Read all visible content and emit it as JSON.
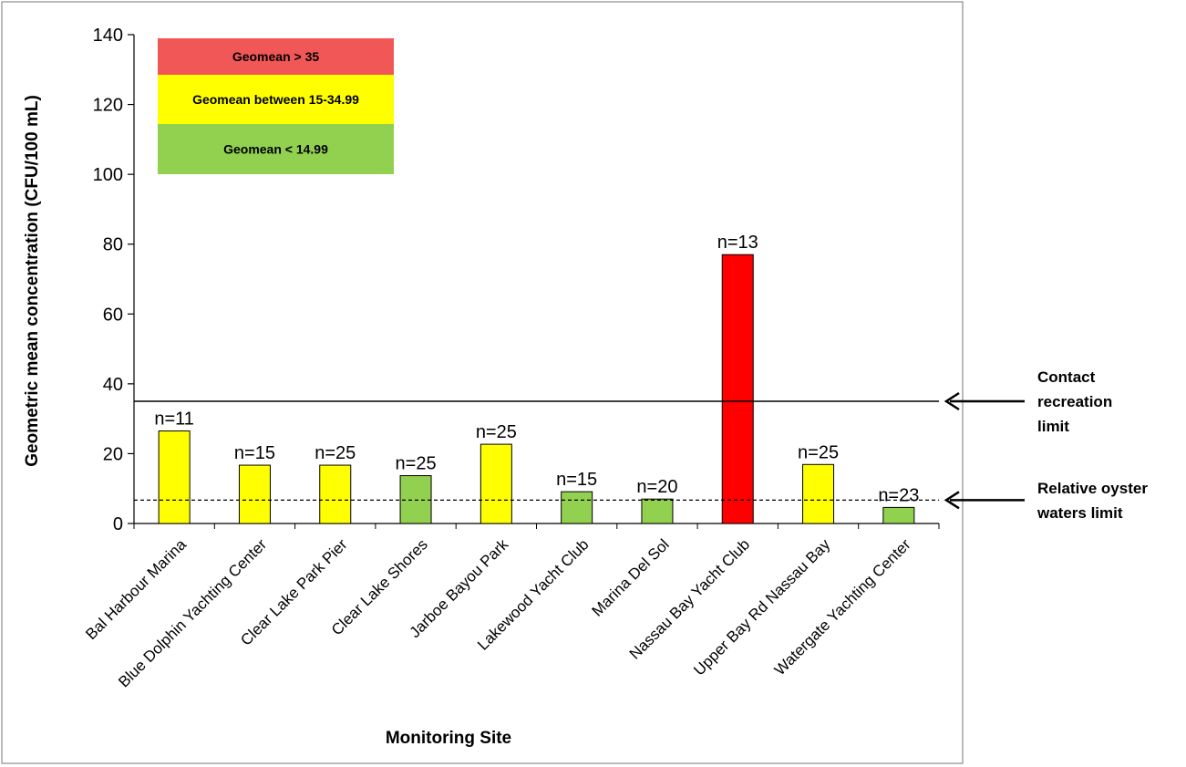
{
  "chart_data": {
    "type": "bar",
    "xlabel": "Monitoring Site",
    "ylabel": "Geometric mean concentration (CFU/100 mL)",
    "ylim": [
      0,
      140
    ],
    "yticks": [
      0,
      20,
      40,
      60,
      80,
      100,
      120,
      140
    ],
    "grid": false,
    "categories": [
      "Bal Harbour Marina",
      "Blue Dolphin Yachting Center",
      "Clear Lake Park Pier",
      "Clear Lake Shores",
      "Jarboe Bayou Park",
      "Lakewood Yacht Club",
      "Marina Del Sol",
      "Nassau Bay Yacht Club",
      "Upper Bay Rd Nassau Bay",
      "Watergate Yachting Center"
    ],
    "values": [
      26.5,
      16.7,
      16.7,
      13.7,
      22.7,
      9.1,
      7.0,
      77.0,
      16.9,
      4.6
    ],
    "annotations": [
      "n=11",
      "n=15",
      "n=25",
      "n=25",
      "n=25",
      "n=15",
      "n=20",
      "n=13",
      "n=25",
      "n=23"
    ],
    "reference_lines": [
      {
        "value": 35,
        "style": "solid",
        "label_lines": [
          "Contact",
          "recreation",
          "limit"
        ]
      },
      {
        "value": 6.7,
        "style": "dashed",
        "label_lines": [
          "Relative oyster",
          "waters limit"
        ]
      }
    ],
    "legend": {
      "placement": "top-left",
      "entries": [
        {
          "label": "Geomean > 35",
          "color": "#f25757"
        },
        {
          "label": "Geomean between 15-34.99",
          "color": "#ffff00"
        },
        {
          "label": "Geomean < 14.99",
          "color": "#92d050"
        }
      ]
    },
    "colors": {
      "red": "#ff0000",
      "yellow": "#ffff00",
      "green": "#92d050"
    },
    "bar_color_class": [
      "yellow",
      "yellow",
      "yellow",
      "green",
      "yellow",
      "green",
      "green",
      "red",
      "yellow",
      "green"
    ]
  }
}
